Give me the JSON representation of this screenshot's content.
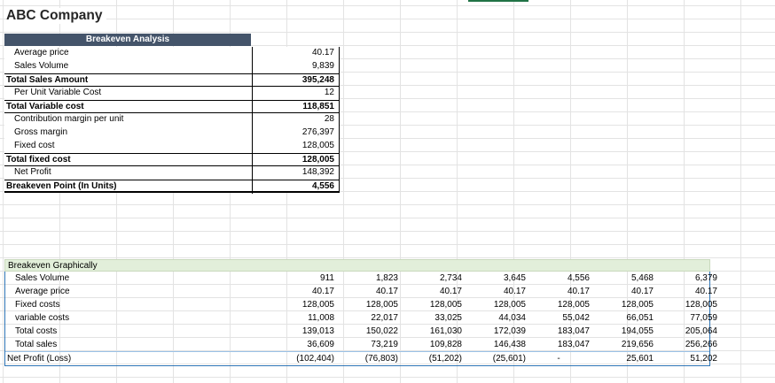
{
  "title": "ABC Company",
  "analysis": {
    "header": "Breakeven Analysis",
    "rows": [
      {
        "label": "Average price",
        "value": "40.17",
        "total": false
      },
      {
        "label": "Sales Volume",
        "value": "9,839",
        "total": false
      },
      {
        "label": "Total Sales Amount",
        "value": "395,248",
        "total": true
      },
      {
        "label": "Per Unit Variable Cost",
        "value": "12",
        "total": false
      },
      {
        "label": "Total Variable cost",
        "value": "118,851",
        "total": true
      },
      {
        "label": "Contribution margin per unit",
        "value": "28",
        "total": false
      },
      {
        "label": "Gross margin",
        "value": "276,397",
        "total": false
      },
      {
        "label": "Fixed cost",
        "value": "128,005",
        "total": false
      },
      {
        "label": "Total fixed cost",
        "value": "128,005",
        "total": true
      },
      {
        "label": "Net Profit",
        "value": "148,392",
        "total": false
      },
      {
        "label": "Breakeven Point (In Units)",
        "value": "4,556",
        "total": true
      }
    ]
  },
  "graphical": {
    "header": "Breakeven Graphically",
    "rows": [
      {
        "label": "Sales Volume",
        "values": [
          "911",
          "1,823",
          "2,734",
          "3,645",
          "4,556",
          "5,468",
          "6,379"
        ]
      },
      {
        "label": "Average price",
        "values": [
          "40.17",
          "40.17",
          "40.17",
          "40.17",
          "40.17",
          "40.17",
          "40.17"
        ]
      },
      {
        "label": "Fixed costs",
        "values": [
          "128,005",
          "128,005",
          "128,005",
          "128,005",
          "128,005",
          "128,005",
          "128,005"
        ]
      },
      {
        "label": "variable costs",
        "values": [
          "11,008",
          "22,017",
          "33,025",
          "44,034",
          "55,042",
          "66,051",
          "77,059"
        ]
      },
      {
        "label": "Total costs",
        "values": [
          "139,013",
          "150,022",
          "161,030",
          "172,039",
          "183,047",
          "194,055",
          "205,064"
        ]
      },
      {
        "label": "Total sales",
        "values": [
          "36,609",
          "73,219",
          "109,828",
          "146,438",
          "183,047",
          "219,656",
          "256,266"
        ]
      },
      {
        "label": "Net Profit (Loss)",
        "values": [
          "(102,404)",
          "(76,803)",
          "(51,202)",
          "(25,601)",
          "-",
          "25,601",
          "51,202"
        ]
      }
    ]
  }
}
